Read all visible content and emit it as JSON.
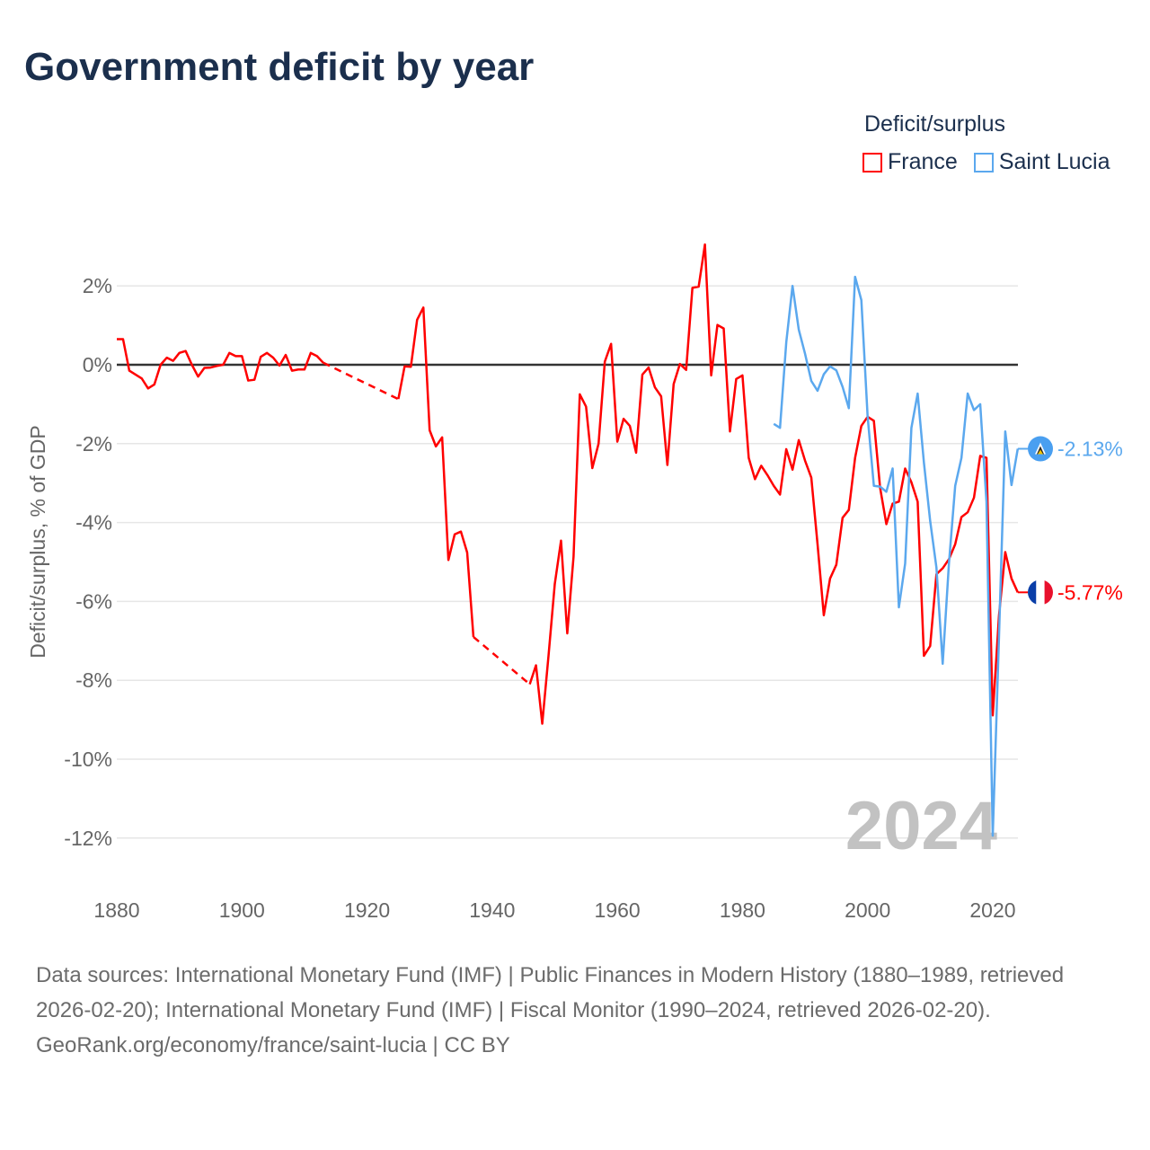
{
  "title": "Government deficit by year",
  "legend": {
    "title": "Deficit/surplus",
    "items": [
      "France",
      "Saint Lucia"
    ]
  },
  "colors": {
    "France": "#ff0000",
    "Saint Lucia": "#5ba8ee",
    "title": "#1b2f4d"
  },
  "year_watermark": "2024",
  "end_labels": {
    "France": "-5.77%",
    "Saint Lucia": "-2.13%"
  },
  "footer": {
    "sources": "Data sources: International Monetary Fund (IMF) | Public Finances in Modern History (1880–1989, retrieved 2026-02-20); International Monetary Fund (IMF) | Fiscal Monitor (1990–2024, retrieved 2026-02-20).",
    "credit": "GeoRank.org/economy/france/saint-lucia | CC BY"
  },
  "chart_data": {
    "type": "line",
    "title": "Government deficit by year",
    "xlabel": "",
    "ylabel": "Deficit/surplus, % of GDP",
    "xlim": [
      1880,
      2024
    ],
    "ylim": [
      -12.5,
      3
    ],
    "x_ticks": [
      "1880",
      "1900",
      "1920",
      "1940",
      "1960",
      "1980",
      "2000",
      "2020"
    ],
    "x_tick_values": [
      1880,
      1900,
      1920,
      1940,
      1960,
      1980,
      2000,
      2020
    ],
    "y_ticks": [
      "-12%",
      "-10%",
      "-8%",
      "-6%",
      "-4%",
      "-2%",
      "0%",
      "2%"
    ],
    "y_tick_values": [
      -12,
      -10,
      -8,
      -6,
      -4,
      -2,
      0,
      2
    ],
    "grid": true,
    "legend_position": "top-right",
    "series": [
      {
        "name": "France",
        "start_year": 1880,
        "values": [
          0.65,
          0.65,
          -0.15,
          -0.25,
          -0.35,
          -0.6,
          -0.5,
          0,
          0.18,
          0.1,
          0.3,
          0.35,
          0,
          -0.3,
          -0.08,
          -0.07,
          -0.03,
          0,
          0.3,
          0.22,
          0.22,
          -0.4,
          -0.38,
          0.2,
          0.3,
          0.18,
          -0.02,
          0.25,
          -0.15,
          -0.12,
          -0.12,
          0.3,
          0.22,
          0.05,
          null,
          null,
          null,
          null,
          null,
          null,
          null,
          null,
          null,
          null,
          null,
          -0.87,
          -0.04,
          -0.05,
          1.14,
          1.45,
          -1.66,
          -2.07,
          -1.84,
          -4.95,
          -4.3,
          -4.23,
          -4.76,
          -6.9,
          null,
          null,
          null,
          null,
          null,
          null,
          null,
          null,
          -8.1,
          -7.62,
          -9.1,
          -7.38,
          -5.56,
          -4.46,
          -6.81,
          -4.87,
          -0.75,
          -1.06,
          -2.62,
          -2.0,
          0.08,
          0.53,
          -1.95,
          -1.37,
          -1.55,
          -2.23,
          -0.25,
          -0.07,
          -0.57,
          -0.8,
          -2.54,
          -0.49,
          0.02,
          -0.13,
          1.95,
          1.98,
          3.05,
          -0.27,
          1.01,
          0.92,
          -1.69,
          -0.36,
          -0.27,
          -2.36,
          -2.9,
          -2.56,
          -2.8,
          -3.07,
          -3.29,
          -2.14,
          -2.66,
          -1.91,
          -2.43,
          -2.86,
          -4.55,
          -6.35,
          -5.42,
          -5.07,
          -3.88,
          -3.68,
          -2.36,
          -1.55,
          -1.32,
          -1.42,
          -3.12,
          -4.04,
          -3.52,
          -3.47,
          -2.63,
          -2.98,
          -3.47,
          -7.38,
          -7.13,
          -5.31,
          -5.16,
          -4.93,
          -4.55,
          -3.86,
          -3.74,
          -3.37,
          -2.31,
          -2.36,
          -8.89,
          -6.36,
          -4.75,
          -5.42,
          -5.77
        ]
      },
      {
        "name": "Saint Lucia",
        "start_year": 1985,
        "values": [
          -1.5,
          -1.6,
          0.57,
          2.0,
          0.89,
          0.28,
          -0.41,
          -0.66,
          -0.24,
          -0.04,
          -0.14,
          -0.56,
          -1.1,
          2.23,
          1.64,
          -1.3,
          -3.07,
          -3.09,
          -3.22,
          -2.63,
          -6.15,
          -5.04,
          -1.6,
          -0.73,
          -2.48,
          -3.96,
          -5.14,
          -7.58,
          -5.04,
          -3.07,
          -2.36,
          -0.73,
          -1.15,
          -1.0,
          -3.47,
          -11.94,
          -6.9,
          -1.69,
          -3.05,
          -2.13
        ]
      }
    ]
  }
}
